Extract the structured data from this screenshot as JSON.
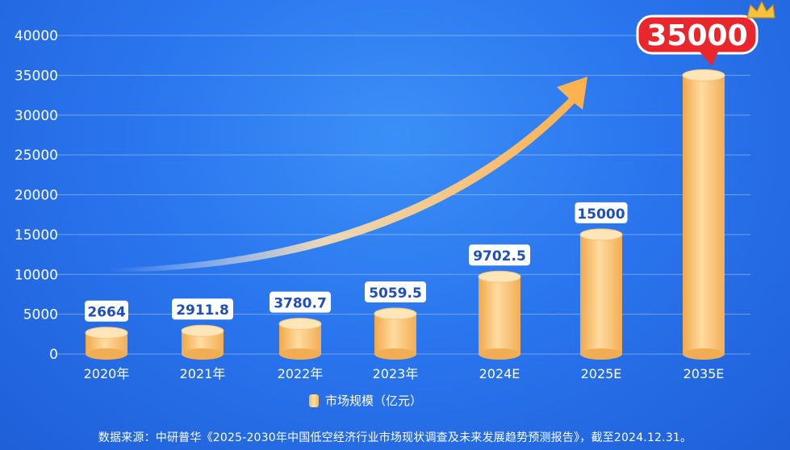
{
  "chart_data": {
    "type": "bar",
    "categories": [
      "2020年",
      "2021年",
      "2022年",
      "2023年",
      "2024E",
      "2025E",
      "2035E"
    ],
    "series": [
      {
        "name": "市场规模（亿元）",
        "values": [
          2664,
          2911.8,
          3780.7,
          5059.5,
          9702.5,
          15000,
          35000
        ]
      }
    ],
    "value_labels": [
      "2664",
      "2911.8",
      "3780.7",
      "5059.5",
      "9702.5",
      "15000",
      "35000"
    ],
    "yticks": [
      "40000",
      "35000",
      "30000",
      "25000",
      "20000",
      "15000",
      "10000",
      "5000",
      "0"
    ],
    "ylim": [
      0,
      40000
    ],
    "grid": true,
    "legend_position": "bottom",
    "highlight_index": 6
  },
  "legend_label": "市场规模（亿元）",
  "source_note": "数据来源：中研普华《2025-2030年中国低空经济行业市场现状调查及未来发展趋势预测报告》，截至2024.12.31。",
  "colors": {
    "background": "#2a76ee",
    "bar": "#f9c77a",
    "label_text": "#1f4fb8",
    "highlight_badge": "#e8262c"
  }
}
